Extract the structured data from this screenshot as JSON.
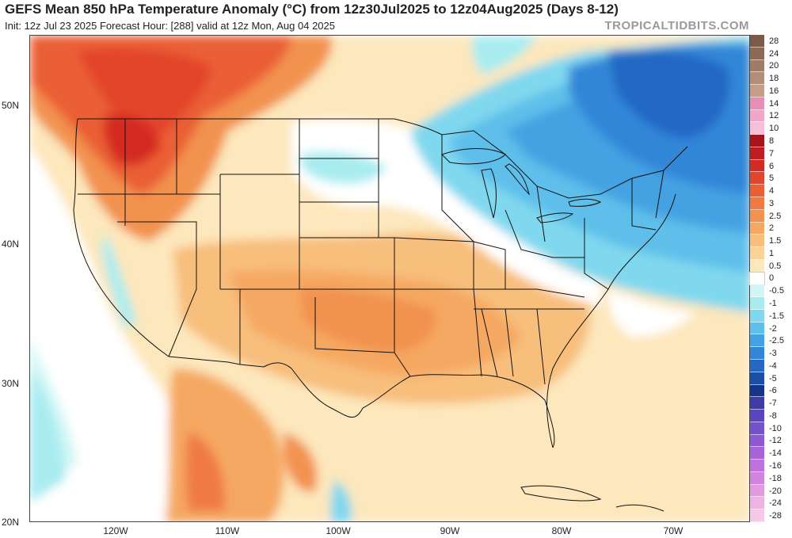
{
  "header": {
    "title": "GEFS Mean 850 hPa Temperature Anomaly (°C) from 12z30Jul2025 to 12z04Aug2025 (Days 8-12)",
    "subtitle": "Init: 12z Jul 23 2025   Forecast Hour: [288]   valid at 12z Mon, Aug 04 2025",
    "brand": "TROPICALTIDBITS.COM"
  },
  "axes": {
    "latitudes": [
      "50N",
      "40N",
      "30N",
      "20N"
    ],
    "longitudes": [
      "120W",
      "110W",
      "100W",
      "90W",
      "80W",
      "70W"
    ]
  },
  "legend": {
    "levels": [
      {
        "label": "28",
        "color": "#7a5a48"
      },
      {
        "label": "24",
        "color": "#8c6a56"
      },
      {
        "label": "20",
        "color": "#a07b66"
      },
      {
        "label": "18",
        "color": "#b48d78"
      },
      {
        "label": "16",
        "color": "#c79d8a"
      },
      {
        "label": "14",
        "color": "#e58fb8"
      },
      {
        "label": "12",
        "color": "#f0a6c8"
      },
      {
        "label": "10",
        "color": "#f6c0d8"
      },
      {
        "label": "8",
        "color": "#a8141e"
      },
      {
        "label": "7",
        "color": "#be1c20"
      },
      {
        "label": "6",
        "color": "#d42a24"
      },
      {
        "label": "5",
        "color": "#e2452c"
      },
      {
        "label": "4",
        "color": "#ea5f36"
      },
      {
        "label": "3",
        "color": "#ef7a42"
      },
      {
        "label": "2.5",
        "color": "#f2924f"
      },
      {
        "label": "2",
        "color": "#f5a862"
      },
      {
        "label": "1.5",
        "color": "#f8be7c"
      },
      {
        "label": "1",
        "color": "#fbd398"
      },
      {
        "label": "0.5",
        "color": "#fde7bc"
      },
      {
        "label": "0",
        "color": "#ffffff"
      },
      {
        "label": "-0.5",
        "color": "#d2f6f6"
      },
      {
        "label": "-1",
        "color": "#a8ecf0"
      },
      {
        "label": "-1.5",
        "color": "#80d8ee"
      },
      {
        "label": "-2",
        "color": "#5ebfea"
      },
      {
        "label": "-2.5",
        "color": "#45a2e2"
      },
      {
        "label": "-3",
        "color": "#3286d8"
      },
      {
        "label": "-4",
        "color": "#2468c4"
      },
      {
        "label": "-5",
        "color": "#1a4ea8"
      },
      {
        "label": "-6",
        "color": "#15358a"
      },
      {
        "label": "-7",
        "color": "#3e3aa6"
      },
      {
        "label": "-8",
        "color": "#5a44c2"
      },
      {
        "label": "-10",
        "color": "#7452cc"
      },
      {
        "label": "-12",
        "color": "#8c5ad2"
      },
      {
        "label": "-14",
        "color": "#a664d8"
      },
      {
        "label": "-16",
        "color": "#be72dc"
      },
      {
        "label": "-18",
        "color": "#d084de"
      },
      {
        "label": "-20",
        "color": "#e29ae0"
      },
      {
        "label": "-24",
        "color": "#efb2e4"
      },
      {
        "label": "-28",
        "color": "#f7c8e8"
      }
    ]
  }
}
